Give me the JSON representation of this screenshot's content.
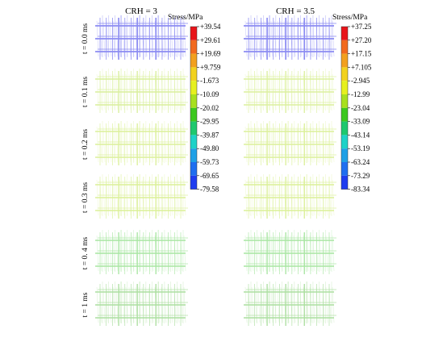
{
  "columns": [
    {
      "title": "CRH = 3",
      "legend": {
        "title": "Stress/MPa",
        "ticks": [
          "+39.54",
          "+29.61",
          "+19.69",
          "+9.759",
          "-1.673",
          "-10.09",
          "-20.02",
          "-29.95",
          "-39.87",
          "-49.80",
          "-59.73",
          "-69.65",
          "-79.58"
        ]
      },
      "frames": [
        {
          "label": "t = 0.0 ms",
          "color": "#8c8cf2"
        },
        {
          "label": "t = 0.1 ms",
          "color": "#d9ef9c"
        },
        {
          "label": "t = 0.2 ms",
          "color": "#dcf09a"
        },
        {
          "label": "t = 0.3 ms",
          "color": "#dbf098"
        },
        {
          "label": "t = 0. 4 ms",
          "color": "#a8e6a2"
        },
        {
          "label": "t = 1 ms",
          "color": "#acdfa0"
        }
      ]
    },
    {
      "title": "CRH = 3.5",
      "legend": {
        "title": "Stress/MPa",
        "ticks": [
          "+37.25",
          "+27.20",
          "+17.15",
          "+7.105",
          "-2.945",
          "-12.99",
          "-23.04",
          "-33.09",
          "-43.14",
          "-53.19",
          "-63.24",
          "-73.29",
          "-83.34"
        ]
      },
      "frames": [
        {
          "label": "",
          "color": "#8c8cf2"
        },
        {
          "label": "",
          "color": "#dcf09e"
        },
        {
          "label": "",
          "color": "#dcf09a"
        },
        {
          "label": "",
          "color": "#dbf098"
        },
        {
          "label": "",
          "color": "#a8e6a2"
        },
        {
          "label": "",
          "color": "#acdfa0"
        }
      ]
    }
  ],
  "legend_colors": [
    "#e8141a",
    "#f26a1e",
    "#f2a01e",
    "#f2d21e",
    "#e6f01e",
    "#a8e01e",
    "#3cc81e",
    "#1ec86e",
    "#1ed2c8",
    "#1ea0e6",
    "#1e6ef0",
    "#1e3cf0"
  ]
}
